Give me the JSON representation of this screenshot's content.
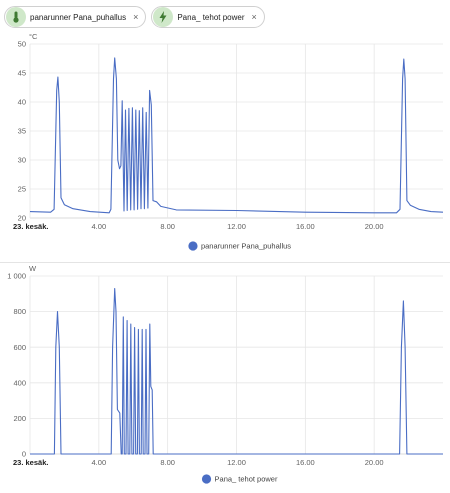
{
  "chips": [
    {
      "label": "panarunner Pana_puhallus",
      "icon": "thermometer-icon",
      "close": "×"
    },
    {
      "label": "Pana_ tehot power",
      "icon": "lightning-bolt-icon",
      "close": "×"
    }
  ],
  "colors": {
    "series": "#4a6dc4",
    "chip_icon_bg": "#cfe8c9",
    "chip_icon_fg": "#3f7a33"
  },
  "charts": [
    {
      "id": "chart1",
      "chart_data": {
        "type": "line",
        "unit": "°C",
        "ylim": [
          20,
          50
        ],
        "yticks": [
          20,
          25,
          30,
          35,
          40,
          45,
          50
        ],
        "ytick_labels": [
          "20",
          "25",
          "30",
          "35",
          "40",
          "45",
          "50"
        ],
        "xlim": [
          0,
          24
        ],
        "xticks": [
          0,
          4,
          8,
          12,
          16,
          20
        ],
        "xtick_labels": [
          "23. kesäk.",
          "4.00",
          "8.00",
          "12.00",
          "16.00",
          "20.00"
        ],
        "grid": true,
        "legend": "bottom-center",
        "series": [
          {
            "name": "panarunner Pana_puhallus",
            "points": [
              [
                0,
                21.1
              ],
              [
                1.2,
                21.0
              ],
              [
                1.4,
                21.5
              ],
              [
                1.55,
                42.0
              ],
              [
                1.62,
                44.3
              ],
              [
                1.7,
                40.0
              ],
              [
                1.8,
                23.5
              ],
              [
                2.0,
                22.3
              ],
              [
                2.5,
                21.6
              ],
              [
                3.5,
                21.1
              ],
              [
                4.6,
                20.9
              ],
              [
                4.7,
                21.5
              ],
              [
                4.85,
                44.0
              ],
              [
                4.92,
                47.6
              ],
              [
                5.02,
                44.0
              ],
              [
                5.1,
                30.0
              ],
              [
                5.2,
                28.5
              ],
              [
                5.28,
                29.0
              ],
              [
                5.36,
                40.2
              ],
              [
                5.46,
                21.2
              ],
              [
                5.55,
                38.6
              ],
              [
                5.65,
                21.3
              ],
              [
                5.75,
                38.9
              ],
              [
                5.85,
                21.4
              ],
              [
                5.95,
                39.0
              ],
              [
                6.05,
                21.4
              ],
              [
                6.15,
                38.6
              ],
              [
                6.25,
                21.5
              ],
              [
                6.35,
                38.5
              ],
              [
                6.45,
                21.6
              ],
              [
                6.55,
                39.0
              ],
              [
                6.65,
                21.6
              ],
              [
                6.75,
                38.2
              ],
              [
                6.85,
                21.7
              ],
              [
                6.95,
                42.0
              ],
              [
                7.05,
                39.5
              ],
              [
                7.15,
                23.0
              ],
              [
                7.35,
                22.8
              ],
              [
                7.6,
                22.0
              ],
              [
                8.5,
                21.4
              ],
              [
                12.0,
                21.3
              ],
              [
                16.0,
                21.0
              ],
              [
                20.0,
                20.9
              ],
              [
                21.3,
                20.9
              ],
              [
                21.5,
                21.5
              ],
              [
                21.65,
                44.0
              ],
              [
                21.72,
                47.4
              ],
              [
                21.8,
                44.0
              ],
              [
                21.9,
                23.0
              ],
              [
                22.1,
                22.2
              ],
              [
                22.6,
                21.5
              ],
              [
                23.3,
                21.1
              ],
              [
                24,
                21.0
              ]
            ]
          }
        ]
      }
    },
    {
      "id": "chart2",
      "chart_data": {
        "type": "line",
        "unit": "W",
        "ylim": [
          0,
          1000
        ],
        "yticks": [
          0,
          200,
          400,
          600,
          800,
          1000
        ],
        "ytick_labels": [
          "0",
          "200",
          "400",
          "600",
          "800",
          "1 000"
        ],
        "xlim": [
          0,
          24
        ],
        "xticks": [
          0,
          4,
          8,
          12,
          16,
          20
        ],
        "xtick_labels": [
          "23. kesäk.",
          "4.00",
          "8.00",
          "12.00",
          "16.00",
          "20.00"
        ],
        "grid": true,
        "legend": "bottom-center",
        "series": [
          {
            "name": "Pana_ tehot power",
            "points": [
              [
                0,
                0
              ],
              [
                1.42,
                0
              ],
              [
                1.5,
                600
              ],
              [
                1.6,
                800
              ],
              [
                1.7,
                600
              ],
              [
                1.8,
                0
              ],
              [
                4.72,
                0
              ],
              [
                4.8,
                600
              ],
              [
                4.92,
                930
              ],
              [
                5.0,
                800
              ],
              [
                5.08,
                250
              ],
              [
                5.22,
                230
              ],
              [
                5.3,
                0
              ],
              [
                5.36,
                0
              ],
              [
                5.42,
                770
              ],
              [
                5.48,
                0
              ],
              [
                5.58,
                0
              ],
              [
                5.64,
                750
              ],
              [
                5.7,
                0
              ],
              [
                5.8,
                0
              ],
              [
                5.86,
                730
              ],
              [
                5.92,
                0
              ],
              [
                6.02,
                0
              ],
              [
                6.08,
                710
              ],
              [
                6.14,
                0
              ],
              [
                6.24,
                0
              ],
              [
                6.3,
                700
              ],
              [
                6.36,
                0
              ],
              [
                6.46,
                0
              ],
              [
                6.52,
                700
              ],
              [
                6.58,
                0
              ],
              [
                6.68,
                0
              ],
              [
                6.74,
                700
              ],
              [
                6.8,
                0
              ],
              [
                6.9,
                0
              ],
              [
                6.96,
                730
              ],
              [
                7.02,
                380
              ],
              [
                7.1,
                360
              ],
              [
                7.16,
                0
              ],
              [
                21.48,
                0
              ],
              [
                21.58,
                600
              ],
              [
                21.7,
                860
              ],
              [
                21.8,
                600
              ],
              [
                21.9,
                0
              ],
              [
                24,
                0
              ]
            ]
          }
        ]
      }
    }
  ]
}
